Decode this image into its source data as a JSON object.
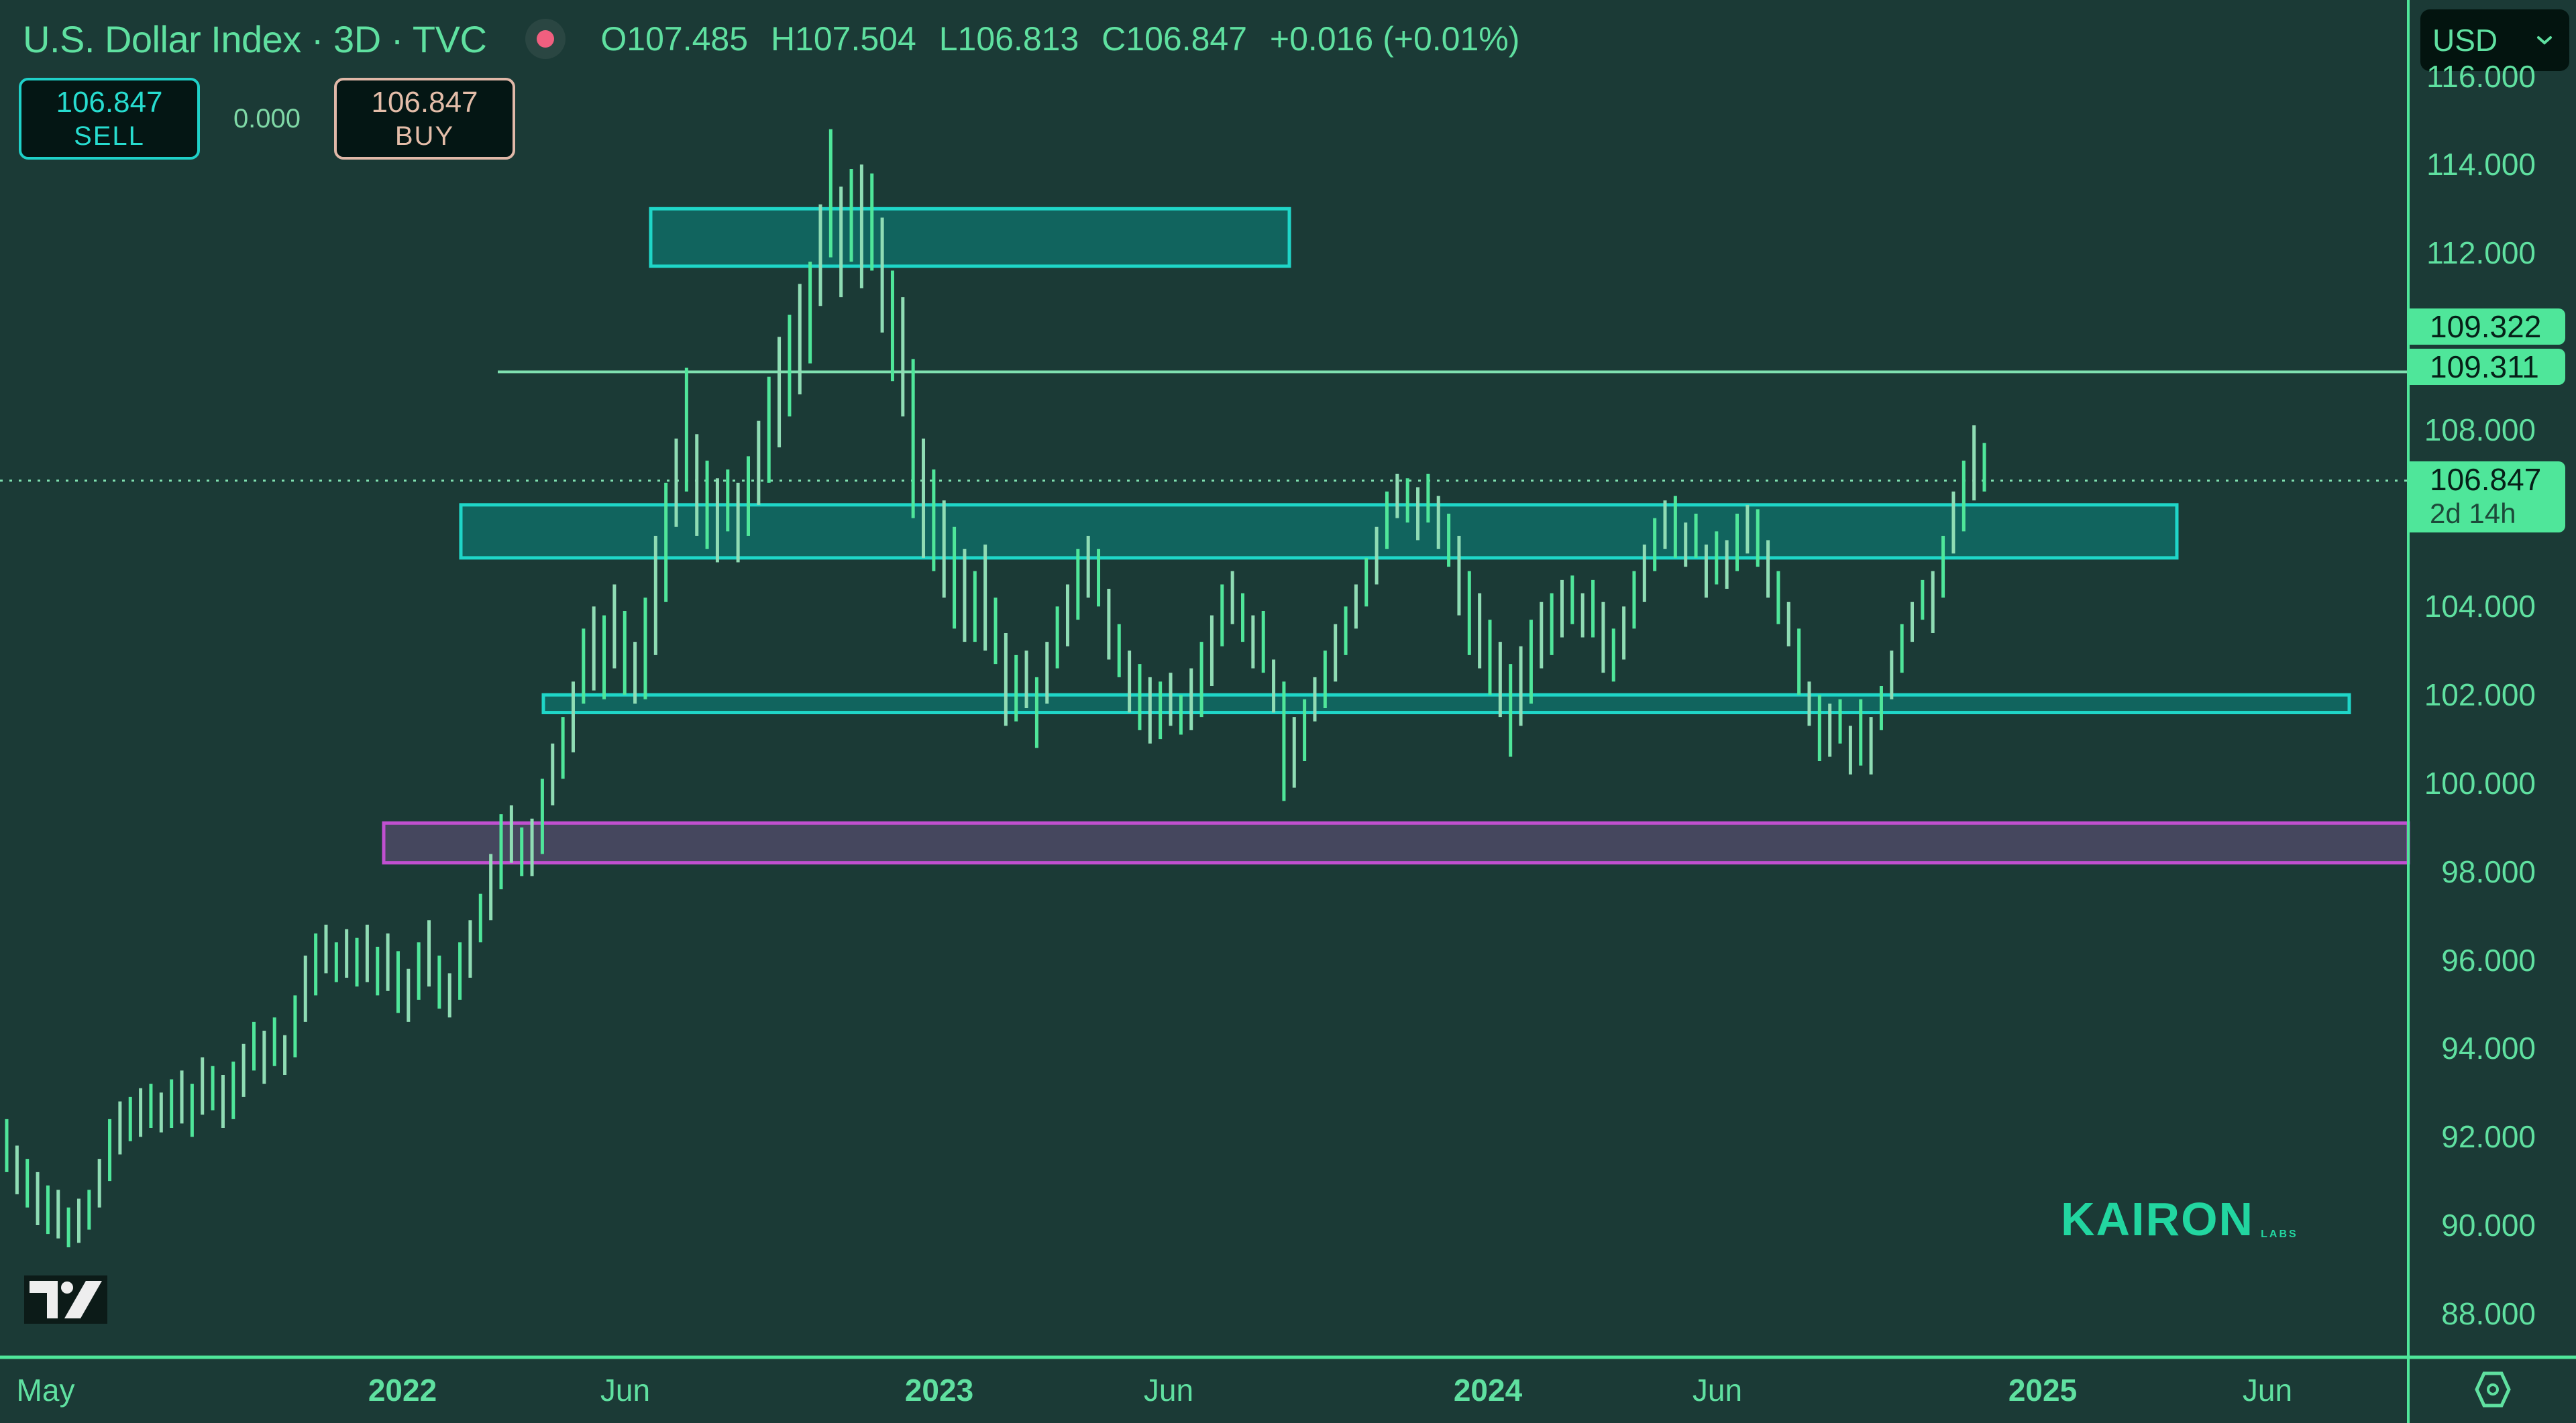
{
  "header": {
    "title": "U.S. Dollar Index · 3D · TVC",
    "status_icon": "live-dot-icon",
    "ohlc": {
      "open": "O107.485",
      "high": "H107.504",
      "low": "L106.813",
      "close": "C106.847",
      "change": "+0.016 (+0.01%)"
    }
  },
  "trade": {
    "sell_price": "106.847",
    "sell_label": "SELL",
    "spread": "0.000",
    "buy_price": "106.847",
    "buy_label": "BUY"
  },
  "currency_select": {
    "value": "USD",
    "icon": "chevron-down-icon"
  },
  "price_axis": {
    "labels": [
      "116.000",
      "114.000",
      "112.000",
      "108.000",
      "104.000",
      "102.000",
      "100.000",
      "98.000",
      "96.000",
      "94.000",
      "92.000",
      "90.000",
      "88.000"
    ],
    "tags": [
      {
        "value": "109.322"
      },
      {
        "value": "109.311"
      },
      {
        "value": "106.847",
        "sub": "2d 14h"
      }
    ]
  },
  "time_axis": {
    "labels": [
      {
        "text": "May",
        "year": false
      },
      {
        "text": "2022",
        "year": true
      },
      {
        "text": "Jun",
        "year": false
      },
      {
        "text": "2023",
        "year": true
      },
      {
        "text": "Jun",
        "year": false
      },
      {
        "text": "2024",
        "year": true
      },
      {
        "text": "Jun",
        "year": false
      },
      {
        "text": "2025",
        "year": true
      },
      {
        "text": "Jun",
        "year": false
      }
    ]
  },
  "watermark": {
    "text": "KAIRON",
    "sub": "LABS"
  },
  "colors": {
    "background": "#1b3a36",
    "bar_up": "#4fe69a",
    "bar_alt": "#8fdcb4",
    "zone_fill": "#11645e",
    "zone_border": "#1fd6c8",
    "purple_fill": "#45475e",
    "purple_border": "#c050d0",
    "axis": "#4fe69a"
  },
  "chart_data": {
    "type": "ohlc",
    "title": "U.S. Dollar Index · 3D · TVC",
    "xlabel": "",
    "ylabel": "",
    "ylim": [
      87,
      116.5
    ],
    "x_ticks": [
      "May",
      "2022",
      "Jun",
      "2023",
      "Jun",
      "2024",
      "Jun",
      "2025",
      "Jun"
    ],
    "y_ticks": [
      88,
      90,
      92,
      94,
      96,
      98,
      100,
      102,
      104,
      106,
      108,
      110,
      112,
      114,
      116
    ],
    "last_price": 106.847,
    "zones": [
      {
        "name": "supply-zone-top",
        "from": 111.7,
        "to": 113.0,
        "x_range": [
          "Sep 2022",
          "Aug 2023"
        ]
      },
      {
        "name": "resistance-zone",
        "from": 105.1,
        "to": 106.3,
        "x_range": [
          "Mar 2022",
          "Feb 2025"
        ]
      },
      {
        "name": "support-zone",
        "from": 101.6,
        "to": 102.0,
        "x_range": [
          "Apr 2022",
          "Sep 2025"
        ]
      },
      {
        "name": "demand-zone-purple",
        "from": 98.2,
        "to": 99.1,
        "x_range": [
          "Dec 2021",
          "right edge"
        ]
      }
    ],
    "lines": [
      {
        "name": "resistance-line",
        "price": 109.31
      }
    ],
    "bars_high_low": [
      [
        92.4,
        91.2
      ],
      [
        91.8,
        90.7
      ],
      [
        91.5,
        90.4
      ],
      [
        91.2,
        90.0
      ],
      [
        90.9,
        89.8
      ],
      [
        90.8,
        89.7
      ],
      [
        90.4,
        89.5
      ],
      [
        90.6,
        89.6
      ],
      [
        90.8,
        89.9
      ],
      [
        91.5,
        90.4
      ],
      [
        92.4,
        91.0
      ],
      [
        92.8,
        91.6
      ],
      [
        92.9,
        91.9
      ],
      [
        93.1,
        92.0
      ],
      [
        93.2,
        92.2
      ],
      [
        93.0,
        92.1
      ],
      [
        93.3,
        92.2
      ],
      [
        93.5,
        92.3
      ],
      [
        93.2,
        92.0
      ],
      [
        93.8,
        92.5
      ],
      [
        93.6,
        92.6
      ],
      [
        93.4,
        92.2
      ],
      [
        93.7,
        92.4
      ],
      [
        94.1,
        92.9
      ],
      [
        94.6,
        93.5
      ],
      [
        94.4,
        93.2
      ],
      [
        94.7,
        93.6
      ],
      [
        94.3,
        93.4
      ],
      [
        95.2,
        93.8
      ],
      [
        96.1,
        94.6
      ],
      [
        96.6,
        95.2
      ],
      [
        96.8,
        95.7
      ],
      [
        96.4,
        95.5
      ],
      [
        96.7,
        95.6
      ],
      [
        96.5,
        95.4
      ],
      [
        96.8,
        95.5
      ],
      [
        96.3,
        95.2
      ],
      [
        96.6,
        95.3
      ],
      [
        96.2,
        94.8
      ],
      [
        95.8,
        94.6
      ],
      [
        96.4,
        95.1
      ],
      [
        96.9,
        95.4
      ],
      [
        96.1,
        94.9
      ],
      [
        95.7,
        94.7
      ],
      [
        96.4,
        95.1
      ],
      [
        96.9,
        95.6
      ],
      [
        97.5,
        96.4
      ],
      [
        98.4,
        96.9
      ],
      [
        99.3,
        97.6
      ],
      [
        99.5,
        98.2
      ],
      [
        99.0,
        97.9
      ],
      [
        99.2,
        97.9
      ],
      [
        100.1,
        98.4
      ],
      [
        100.9,
        99.5
      ],
      [
        101.5,
        100.1
      ],
      [
        102.3,
        100.7
      ],
      [
        103.5,
        101.8
      ],
      [
        104.0,
        102.1
      ],
      [
        103.8,
        101.9
      ],
      [
        104.5,
        102.6
      ],
      [
        103.9,
        102.0
      ],
      [
        103.2,
        101.8
      ],
      [
        104.2,
        101.9
      ],
      [
        105.6,
        102.9
      ],
      [
        106.8,
        104.1
      ],
      [
        107.8,
        105.8
      ],
      [
        109.4,
        106.6
      ],
      [
        107.9,
        105.6
      ],
      [
        107.3,
        105.3
      ],
      [
        106.9,
        105.0
      ],
      [
        107.1,
        105.7
      ],
      [
        106.8,
        105.0
      ],
      [
        107.4,
        105.6
      ],
      [
        108.2,
        106.3
      ],
      [
        109.2,
        106.8
      ],
      [
        110.1,
        107.6
      ],
      [
        110.6,
        108.3
      ],
      [
        111.3,
        108.8
      ],
      [
        111.8,
        109.5
      ],
      [
        113.1,
        110.8
      ],
      [
        114.8,
        111.9
      ],
      [
        113.5,
        111.0
      ],
      [
        113.9,
        111.8
      ],
      [
        114.0,
        111.2
      ],
      [
        113.8,
        111.6
      ],
      [
        112.8,
        110.2
      ],
      [
        111.6,
        109.1
      ],
      [
        111.0,
        108.3
      ],
      [
        109.6,
        106.0
      ],
      [
        107.8,
        105.1
      ],
      [
        107.1,
        104.8
      ],
      [
        106.4,
        104.2
      ],
      [
        105.8,
        103.5
      ],
      [
        105.3,
        103.2
      ],
      [
        104.8,
        103.2
      ],
      [
        105.4,
        103.0
      ],
      [
        104.2,
        102.7
      ],
      [
        103.4,
        101.3
      ],
      [
        102.9,
        101.4
      ],
      [
        103.0,
        101.7
      ],
      [
        102.4,
        100.8
      ],
      [
        103.2,
        101.8
      ],
      [
        104.0,
        102.6
      ],
      [
        104.5,
        103.1
      ],
      [
        105.3,
        103.7
      ],
      [
        105.6,
        104.2
      ],
      [
        105.3,
        104.0
      ],
      [
        104.4,
        102.8
      ],
      [
        103.6,
        102.4
      ],
      [
        103.0,
        101.6
      ],
      [
        102.7,
        101.2
      ],
      [
        102.4,
        100.9
      ],
      [
        102.3,
        101.0
      ],
      [
        102.5,
        101.3
      ],
      [
        102.0,
        101.1
      ],
      [
        102.6,
        101.2
      ],
      [
        103.2,
        101.5
      ],
      [
        103.8,
        102.2
      ],
      [
        104.5,
        103.1
      ],
      [
        104.8,
        103.6
      ],
      [
        104.3,
        103.2
      ],
      [
        103.8,
        102.6
      ],
      [
        103.9,
        102.5
      ],
      [
        102.8,
        101.6
      ],
      [
        102.3,
        99.6
      ],
      [
        101.5,
        99.9
      ],
      [
        101.9,
        100.5
      ],
      [
        102.4,
        101.4
      ],
      [
        103.0,
        101.7
      ],
      [
        103.6,
        102.3
      ],
      [
        104.0,
        102.9
      ],
      [
        104.5,
        103.5
      ],
      [
        105.1,
        104.0
      ],
      [
        105.8,
        104.5
      ],
      [
        106.6,
        105.3
      ],
      [
        107.0,
        106.0
      ],
      [
        106.9,
        105.9
      ],
      [
        106.7,
        105.5
      ],
      [
        107.0,
        105.9
      ],
      [
        106.5,
        105.3
      ],
      [
        106.1,
        104.9
      ],
      [
        105.6,
        103.8
      ],
      [
        104.8,
        102.9
      ],
      [
        104.3,
        102.6
      ],
      [
        103.7,
        102.0
      ],
      [
        103.2,
        101.5
      ],
      [
        102.7,
        100.6
      ],
      [
        103.1,
        101.3
      ],
      [
        103.7,
        101.8
      ],
      [
        104.1,
        102.6
      ],
      [
        104.3,
        102.9
      ],
      [
        104.6,
        103.3
      ],
      [
        104.7,
        103.6
      ],
      [
        104.3,
        103.3
      ],
      [
        104.6,
        103.3
      ],
      [
        104.1,
        102.5
      ],
      [
        103.5,
        102.3
      ],
      [
        104.0,
        102.8
      ],
      [
        104.8,
        103.5
      ],
      [
        105.4,
        104.1
      ],
      [
        106.0,
        104.8
      ],
      [
        106.4,
        105.3
      ],
      [
        106.5,
        105.1
      ],
      [
        105.9,
        104.9
      ],
      [
        106.1,
        105.1
      ],
      [
        105.4,
        104.2
      ],
      [
        105.7,
        104.5
      ],
      [
        105.5,
        104.4
      ],
      [
        106.1,
        104.8
      ],
      [
        106.3,
        105.2
      ],
      [
        106.2,
        104.9
      ],
      [
        105.5,
        104.2
      ],
      [
        104.8,
        103.6
      ],
      [
        104.1,
        103.1
      ],
      [
        103.5,
        102.0
      ],
      [
        102.3,
        101.3
      ],
      [
        102.0,
        100.5
      ],
      [
        101.8,
        100.6
      ],
      [
        101.9,
        100.9
      ],
      [
        101.3,
        100.2
      ],
      [
        101.9,
        100.4
      ],
      [
        101.5,
        100.2
      ],
      [
        102.2,
        101.2
      ],
      [
        103.0,
        101.9
      ],
      [
        103.6,
        102.5
      ],
      [
        104.1,
        103.2
      ],
      [
        104.6,
        103.7
      ],
      [
        104.8,
        103.4
      ],
      [
        105.6,
        104.2
      ],
      [
        106.6,
        105.2
      ],
      [
        107.3,
        105.7
      ],
      [
        108.1,
        106.4
      ],
      [
        107.7,
        106.6
      ]
    ]
  }
}
